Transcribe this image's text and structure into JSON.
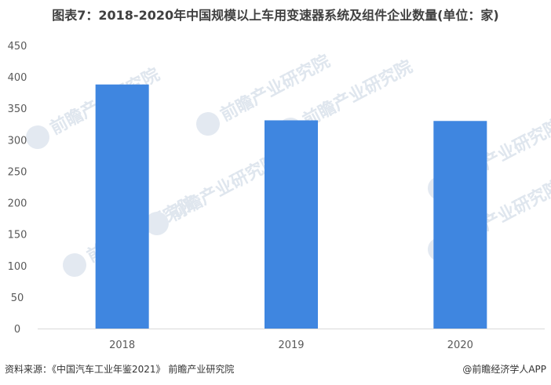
{
  "title": "图表7：2018-2020年中国规模以上车用变速器系统及组件企业数量(单位：家)",
  "chart_data": {
    "type": "bar",
    "categories": [
      "2018",
      "2019",
      "2020"
    ],
    "values": [
      388,
      331,
      330
    ],
    "ylim": [
      0,
      450
    ],
    "yticks": [
      0,
      50,
      100,
      150,
      200,
      250,
      300,
      350,
      400,
      450
    ],
    "grid": false,
    "legend": "none",
    "bar_color": "#3f86e0",
    "title": "图表7：2018-2020年中国规模以上车用变速器系统及组件企业数量(单位：家)"
  },
  "watermark": "前瞻产业研究院",
  "footer": {
    "source": "资料来源：《中国汽车工业年鉴2021》 前瞻产业研究院",
    "credit": "@前瞻经济学人APP"
  }
}
